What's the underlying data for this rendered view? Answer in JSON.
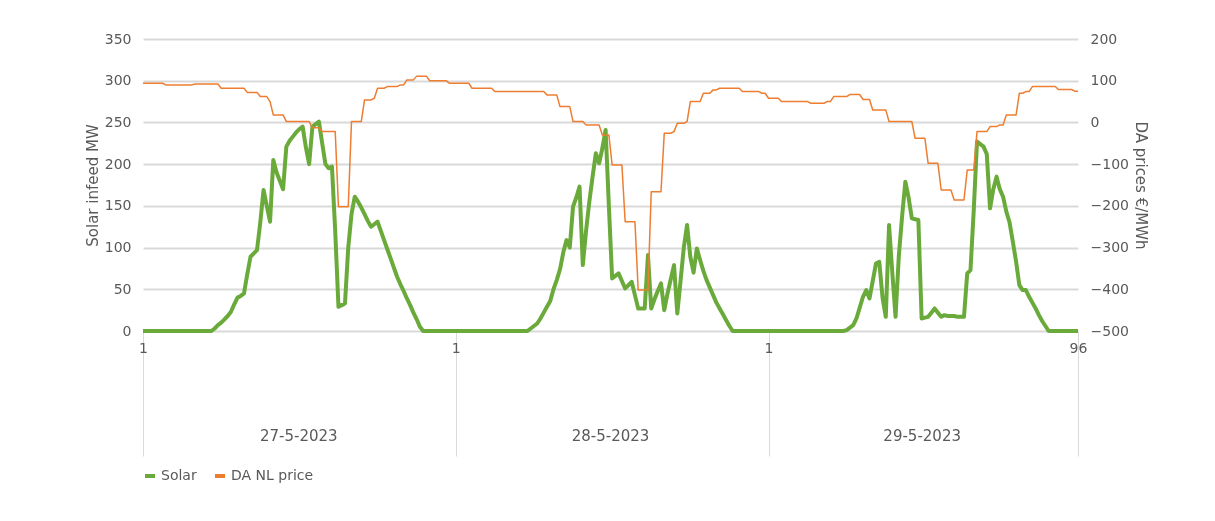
{
  "chart_data": {
    "type": "line",
    "ylabel": "Solar infeed MW",
    "y2label": "DA prices €/MWh",
    "categories": [
      "1",
      null,
      null,
      null,
      null,
      null,
      null,
      null,
      null,
      null,
      null,
      null,
      null,
      null,
      null,
      null,
      null,
      null,
      null,
      null,
      null,
      null,
      null,
      null,
      null,
      null,
      null,
      null,
      null,
      null,
      null,
      null,
      null,
      null,
      null,
      null,
      null,
      null,
      null,
      null,
      null,
      null,
      null,
      null,
      null,
      null,
      null,
      null,
      null,
      null,
      null,
      null,
      null,
      null,
      null,
      null,
      null,
      null,
      null,
      null,
      null,
      null,
      null,
      null,
      null,
      null,
      null,
      null,
      null,
      null,
      null,
      null,
      null,
      null,
      null,
      null,
      null,
      null,
      null,
      null,
      null,
      null,
      null,
      null,
      null,
      null,
      null,
      null,
      null,
      null,
      null,
      null,
      null,
      null,
      null,
      null,
      "1",
      null,
      null,
      null,
      null,
      null,
      null,
      null,
      null,
      null,
      null,
      null,
      null,
      null,
      null,
      null,
      null,
      null,
      null,
      null,
      null,
      null,
      null,
      null,
      null,
      null,
      null,
      null,
      null,
      null,
      null,
      null,
      null,
      null,
      null,
      null,
      null,
      null,
      null,
      null,
      null,
      null,
      null,
      null,
      null,
      null,
      null,
      null,
      null,
      null,
      null,
      null,
      null,
      null,
      null,
      null,
      null,
      null,
      null,
      null,
      null,
      null,
      null,
      null,
      null,
      null,
      null,
      null,
      null,
      null,
      null,
      null,
      null,
      null,
      null,
      null,
      null,
      null,
      null,
      null,
      null,
      null,
      null,
      null,
      null,
      null,
      null,
      null,
      null,
      null,
      null,
      null,
      null,
      null,
      null,
      null,
      "1",
      null,
      null,
      null,
      null,
      null,
      null,
      null,
      null,
      null,
      null,
      null,
      null,
      null,
      null,
      null,
      null,
      null,
      null,
      null,
      null,
      null,
      null,
      null,
      null,
      null,
      null,
      null,
      null,
      null,
      null,
      null,
      null,
      null,
      null,
      null,
      null,
      null,
      null,
      null,
      null,
      null,
      null,
      null,
      null,
      null,
      null,
      null,
      null,
      null,
      null,
      null,
      null,
      null,
      null,
      null,
      null,
      null,
      null,
      null,
      null,
      null,
      null,
      null,
      null,
      null,
      null,
      null,
      null,
      null,
      null,
      null,
      null,
      null,
      null,
      null,
      null,
      null,
      null,
      null,
      null,
      null,
      null,
      null,
      null,
      null,
      null,
      null,
      null,
      null,
      null,
      null,
      null,
      null,
      null,
      "96"
    ],
    "ylim": [
      0,
      350
    ],
    "yticks": [
      0,
      50,
      100,
      150,
      200,
      250,
      300,
      350
    ],
    "y2lim": [
      -500,
      200
    ],
    "y2ticks": [
      -500,
      -400,
      -300,
      -200,
      -100,
      0,
      100,
      200
    ],
    "grid": "y",
    "legend": "bottom",
    "marker": "none",
    "line_style": "solid",
    "annotations": [
      "27-5-2023",
      "28-5-2023",
      "29-5-2023"
    ],
    "series": [
      {
        "name": "Solar",
        "color": "#6aaa3a",
        "values": [
          0,
          0,
          0,
          0,
          0,
          0,
          0,
          0,
          0,
          0,
          0,
          0,
          0,
          0,
          0,
          0,
          0,
          0,
          0,
          0,
          0,
          0,
          3,
          7,
          10,
          14,
          18,
          23,
          32,
          40,
          42,
          45,
          68,
          89,
          93,
          97,
          130,
          169,
          150,
          131,
          205,
          190,
          180,
          170,
          221,
          228,
          233,
          238,
          242,
          245,
          220,
          200,
          245,
          248,
          251,
          225,
          200,
          195,
          197,
          120,
          29,
          31,
          33,
          100,
          140,
          161,
          155,
          148,
          140,
          132,
          125,
          128,
          131,
          120,
          109,
          98,
          87,
          76,
          65,
          56,
          48,
          39,
          31,
          22,
          14,
          5,
          0,
          0,
          0,
          0,
          0,
          0,
          0,
          0,
          0,
          0,
          0,
          0,
          0,
          0,
          0,
          0,
          0,
          0,
          0,
          0,
          0,
          0,
          0,
          0,
          0,
          0,
          0,
          0,
          0,
          0,
          0,
          0,
          0,
          3,
          6,
          9,
          15,
          22,
          29,
          36,
          50,
          61,
          74,
          94,
          109,
          100,
          149,
          160,
          173,
          79,
          120,
          155,
          185,
          213,
          201,
          219,
          241,
          150,
          63,
          66,
          69,
          60,
          51,
          55,
          59,
          43,
          27,
          27,
          27,
          91,
          27,
          38,
          48,
          57,
          25,
          45,
          62,
          79,
          21,
          60,
          100,
          127,
          89,
          70,
          99,
          85,
          72,
          61,
          52,
          43,
          34,
          27,
          20,
          13,
          6,
          0,
          0,
          0,
          0,
          0,
          0,
          0,
          0,
          0,
          0,
          0,
          0,
          0,
          0,
          0,
          0,
          0,
          0,
          0,
          0,
          0,
          0,
          0,
          0,
          0,
          0,
          0,
          0,
          0,
          0,
          0,
          0,
          0,
          0,
          0,
          1,
          4,
          7,
          15,
          28,
          41,
          49,
          39,
          60,
          81,
          83,
          40,
          17,
          127,
          70,
          17,
          90,
          137,
          179,
          160,
          135,
          134,
          133,
          15,
          16,
          17,
          22,
          27,
          22,
          17,
          19,
          18,
          18,
          18,
          17,
          17,
          17,
          69,
          73,
          145,
          227,
          224,
          221,
          212,
          147,
          170,
          185,
          170,
          161,
          143,
          130,
          107,
          83,
          55,
          49,
          49,
          41,
          34,
          27,
          19,
          12,
          6,
          0,
          0,
          0,
          0,
          0,
          0,
          0,
          0,
          0,
          0
        ]
      },
      {
        "name": "DA NL price",
        "color": "#ed7d31",
        "axis": "y2",
        "values": [
          94,
          94,
          94,
          94,
          94,
          94,
          94,
          90,
          90,
          90,
          90,
          90,
          90,
          90,
          90,
          90,
          92,
          92,
          92,
          92,
          92,
          92,
          92,
          92,
          82,
          82,
          82,
          82,
          82,
          82,
          82,
          82,
          72,
          72,
          72,
          72,
          62,
          62,
          62,
          50,
          18,
          18,
          18,
          18,
          2,
          2,
          2,
          2,
          2,
          2,
          2,
          2,
          -13,
          -13,
          -13,
          -22,
          -22,
          -22,
          -22,
          -22,
          -202,
          -202,
          -202,
          -202,
          2,
          2,
          2,
          2,
          54,
          54,
          54,
          58,
          82,
          82,
          82,
          86,
          86,
          86,
          86,
          90,
          90,
          102,
          102,
          102,
          111,
          111,
          111,
          111,
          100,
          100,
          100,
          100,
          100,
          100,
          94,
          94,
          94,
          94,
          94,
          94,
          94,
          82,
          82,
          82,
          82,
          82,
          82,
          82,
          74,
          74,
          74,
          74,
          74,
          74,
          74,
          74,
          74,
          74,
          74,
          74,
          74,
          74,
          74,
          74,
          66,
          66,
          66,
          66,
          38,
          38,
          38,
          38,
          2,
          2,
          2,
          2,
          -6,
          -6,
          -6,
          -6,
          -6,
          -30,
          -30,
          -30,
          -102,
          -102,
          -102,
          -102,
          -238,
          -238,
          -238,
          -238,
          -402,
          -402,
          -402,
          -402,
          -166,
          -166,
          -166,
          -166,
          -26,
          -26,
          -26,
          -22,
          -2,
          -2,
          -2,
          2,
          50,
          50,
          50,
          50,
          70,
          70,
          70,
          78,
          78,
          82,
          82,
          82,
          82,
          82,
          82,
          82,
          74,
          74,
          74,
          74,
          74,
          74,
          70,
          70,
          58,
          58,
          58,
          58,
          50,
          50,
          50,
          50,
          50,
          50,
          50,
          50,
          50,
          46,
          46,
          46,
          46,
          46,
          50,
          50,
          62,
          62,
          62,
          62,
          62,
          67,
          67,
          67,
          67,
          55,
          55,
          55,
          30,
          30,
          30,
          30,
          30,
          2,
          2,
          2,
          2,
          2,
          2,
          2,
          2,
          -38,
          -38,
          -38,
          -38,
          -98,
          -98,
          -98,
          -98,
          -162,
          -162,
          -162,
          -162,
          -186,
          -186,
          -186,
          -186,
          -114,
          -114,
          -114,
          -22,
          -22,
          -22,
          -22,
          -10,
          -10,
          -10,
          -6,
          -6,
          18,
          18,
          18,
          18,
          70,
          70,
          74,
          74,
          86,
          86,
          86,
          86,
          86,
          86,
          86,
          86,
          79,
          79,
          79,
          79,
          79,
          75,
          75
        ]
      }
    ]
  }
}
